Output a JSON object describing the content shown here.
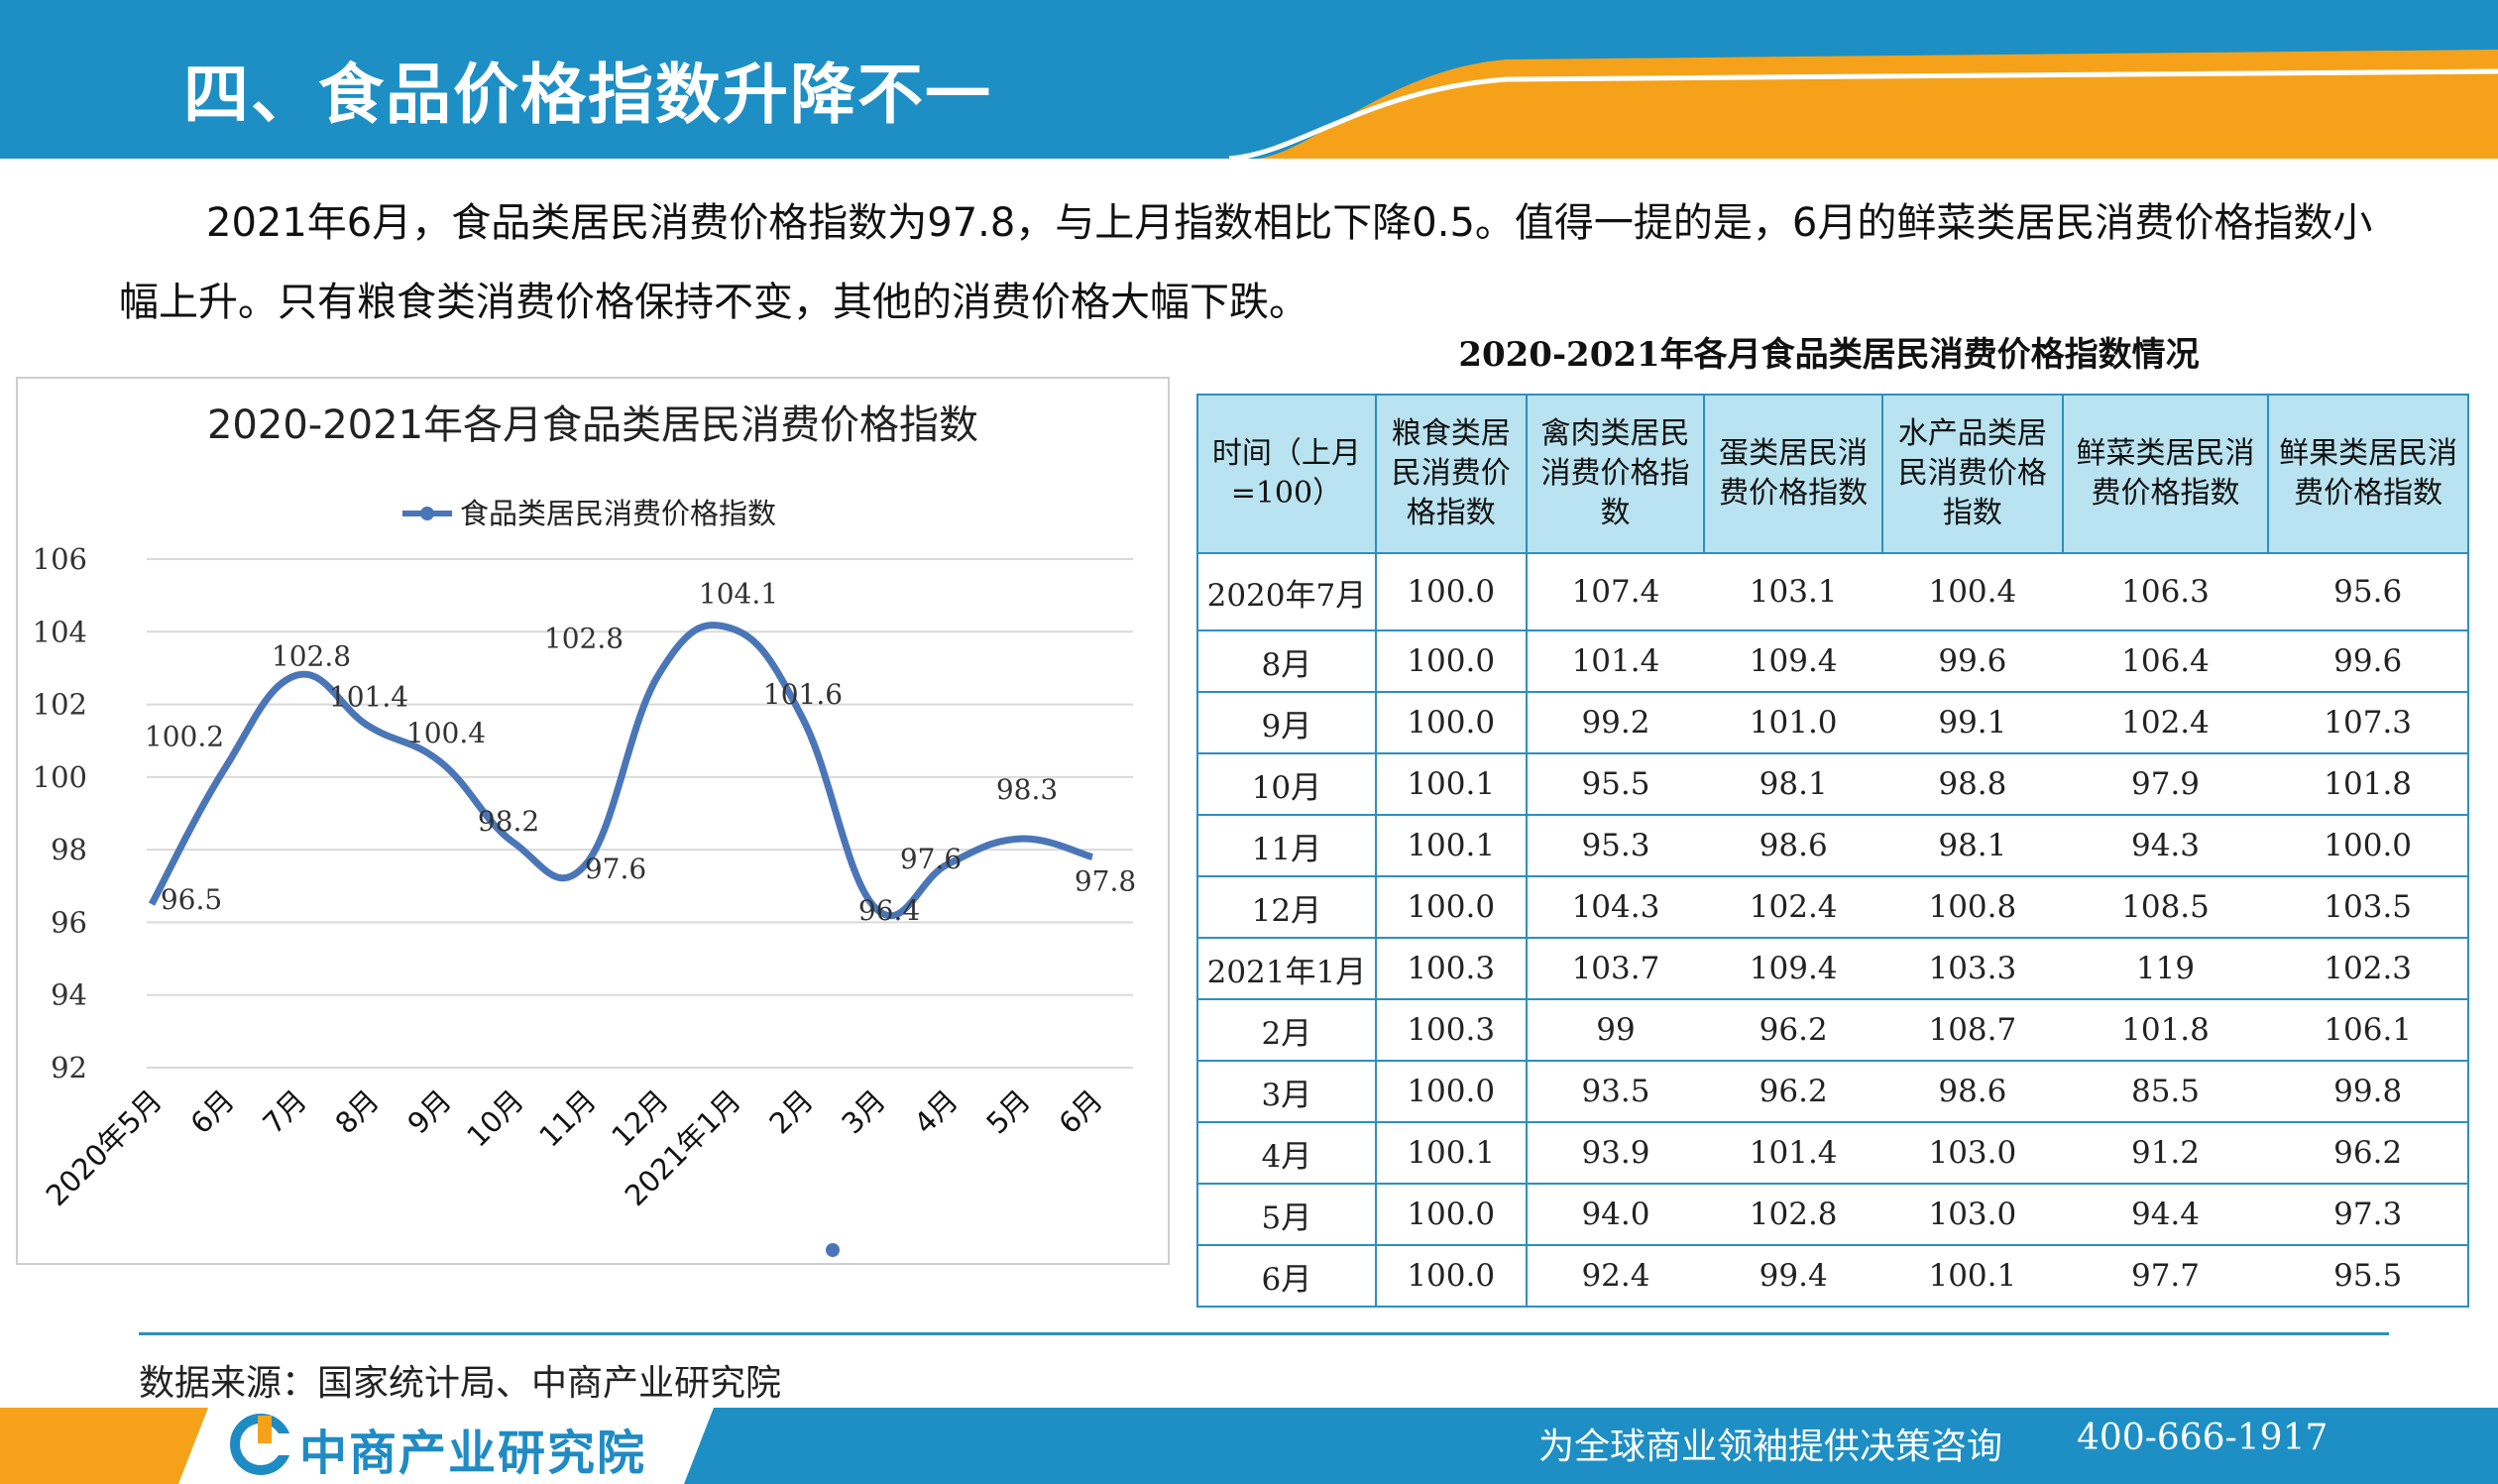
{
  "page": {
    "title": "四、食品价格指数升降不一",
    "intro": "2021年6月，食品类居民消费价格指数为97.8，与上月指数相比下降0.5。值得一提的是，6月的鲜菜类居民消费价格指数小幅上升。只有粮食类消费价格保持不变，其他的消费价格大幅下跌。",
    "source": "数据来源：国家统计局、中商产业研究院",
    "brand": "中商产业研究院",
    "slogan": "为全球商业领袖提供决策咨询",
    "phone": "400-666-1917"
  },
  "colors": {
    "header_blue": "#1d8fc5",
    "header_orange": "#f5a21a",
    "line_series": "#4a76b8",
    "table_header_bg": "#b9e3f0",
    "table_border": "#2c8fc0"
  },
  "chart_data": [
    {
      "type": "line",
      "title": "2020-2021年各月食品类居民消费价格指数",
      "legend": "top-center",
      "grid": true,
      "x": [
        "2020年5月",
        "6月",
        "7月",
        "8月",
        "9月",
        "10月",
        "11月",
        "12月",
        "2021年1月",
        "2月",
        "3月",
        "4月",
        "5月",
        "6月"
      ],
      "series": [
        {
          "name": "食品类居民消费价格指数",
          "values": [
            96.5,
            100.2,
            102.8,
            101.4,
            100.4,
            98.2,
            97.6,
            102.8,
            104.1,
            101.6,
            96.4,
            97.6,
            98.3,
            97.8
          ]
        }
      ],
      "data_labels": [
        "96.5",
        "100.2",
        "102.8",
        "101.4",
        "100.4",
        "98.2",
        "97.6",
        "102.8",
        "104.1",
        "101.6",
        "96.4",
        "97.6",
        "98.3",
        "97.8"
      ],
      "yticks": [
        "92",
        "94",
        "96",
        "98",
        "100",
        "102",
        "104",
        "106"
      ],
      "ylim": [
        92,
        106
      ]
    },
    {
      "type": "table",
      "title": "2020-2021年各月食品类居民消费价格指数情况",
      "columns": [
        "时间（上月=100）",
        "粮食类居民消费价格指数",
        "禽肉类居民消费价格指数",
        "蛋类居民消费价格指数",
        "水产品类居民消费价格指数",
        "鲜菜类居民消费价格指数",
        "鲜果类居民消费价格指数"
      ],
      "rows": [
        [
          "2020年7月",
          "100.0",
          "107.4",
          "103.1",
          "100.4",
          "106.3",
          "95.6"
        ],
        [
          "8月",
          "100.0",
          "101.4",
          "109.4",
          "99.6",
          "106.4",
          "99.6"
        ],
        [
          "9月",
          "100.0",
          "99.2",
          "101.0",
          "99.1",
          "102.4",
          "107.3"
        ],
        [
          "10月",
          "100.1",
          "95.5",
          "98.1",
          "98.8",
          "97.9",
          "101.8"
        ],
        [
          "11月",
          "100.1",
          "95.3",
          "98.6",
          "98.1",
          "94.3",
          "100.0"
        ],
        [
          "12月",
          "100.0",
          "104.3",
          "102.4",
          "100.8",
          "108.5",
          "103.5"
        ],
        [
          "2021年1月",
          "100.3",
          "103.7",
          "109.4",
          "103.3",
          "119",
          "102.3"
        ],
        [
          "2月",
          "100.3",
          "99",
          "96.2",
          "108.7",
          "101.8",
          "106.1"
        ],
        [
          "3月",
          "100.0",
          "93.5",
          "96.2",
          "98.6",
          "85.5",
          "99.8"
        ],
        [
          "4月",
          "100.1",
          "93.9",
          "101.4",
          "103.0",
          "91.2",
          "96.2"
        ],
        [
          "5月",
          "100.0",
          "94.0",
          "102.8",
          "103.0",
          "94.4",
          "97.3"
        ],
        [
          "6月",
          "100.0",
          "92.4",
          "99.4",
          "100.1",
          "97.7",
          "95.5"
        ]
      ]
    }
  ]
}
